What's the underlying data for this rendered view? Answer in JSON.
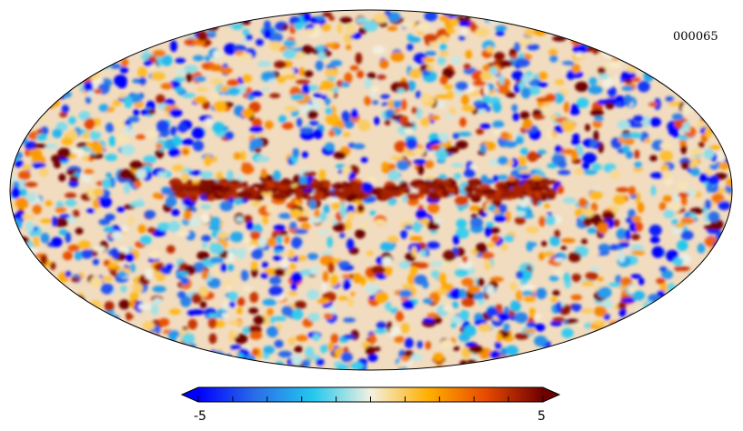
{
  "map": {
    "id_label": "000065",
    "projection": "mollweide",
    "outline_color": "#000000"
  },
  "colorbar": {
    "min_label": "-5",
    "max_label": "5",
    "min": -5,
    "max": 5,
    "extend": "both",
    "stops": [
      "#0000ff",
      "#2a6ee8",
      "#24c8ee",
      "#f4f0e0",
      "#ffb000",
      "#e84a00",
      "#6e0000"
    ]
  }
}
